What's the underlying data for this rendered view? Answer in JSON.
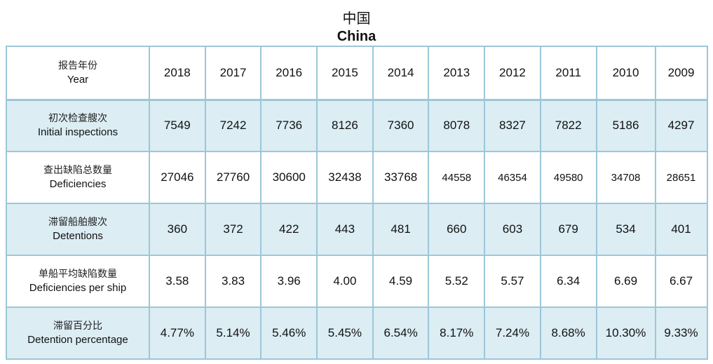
{
  "title": {
    "cn": "中国",
    "en": "China"
  },
  "header": {
    "label_cn": "报告年份",
    "label_en": "Year",
    "years": [
      "2018",
      "2017",
      "2016",
      "2015",
      "2014",
      "2013",
      "2012",
      "2011",
      "2010",
      "2009"
    ]
  },
  "rows": [
    {
      "label_cn": "初次检查艘次",
      "label_en": "Initial inspections",
      "values": [
        "7549",
        "7242",
        "7736",
        "8126",
        "7360",
        "8078",
        "8327",
        "7822",
        "5186",
        "4297"
      ]
    },
    {
      "label_cn": "查出缺陷总数量",
      "label_en": "Deficiencies",
      "values": [
        "27046",
        "27760",
        "30600",
        "32438",
        "33768",
        "44558",
        "46354",
        "49580",
        "34708",
        "28651"
      ]
    },
    {
      "label_cn": "滞留船舶艘次",
      "label_en": "Detentions",
      "values": [
        "360",
        "372",
        "422",
        "443",
        "481",
        "660",
        "603",
        "679",
        "534",
        "401"
      ]
    },
    {
      "label_cn": "单船平均缺陷数量",
      "label_en": "Deficiencies per ship",
      "values": [
        "3.58",
        "3.83",
        "3.96",
        "4.00",
        "4.59",
        "5.52",
        "5.57",
        "6.34",
        "6.69",
        "6.67"
      ]
    },
    {
      "label_cn": "滞留百分比",
      "label_en": "Detention percentage",
      "values": [
        "4.77%",
        "5.14%",
        "5.46%",
        "5.45%",
        "6.54%",
        "8.17%",
        "7.24%",
        "8.68%",
        "10.30%",
        "9.33%"
      ]
    }
  ],
  "colors": {
    "border": "#9cc7d8",
    "shaded_row": "#dcedf4"
  }
}
